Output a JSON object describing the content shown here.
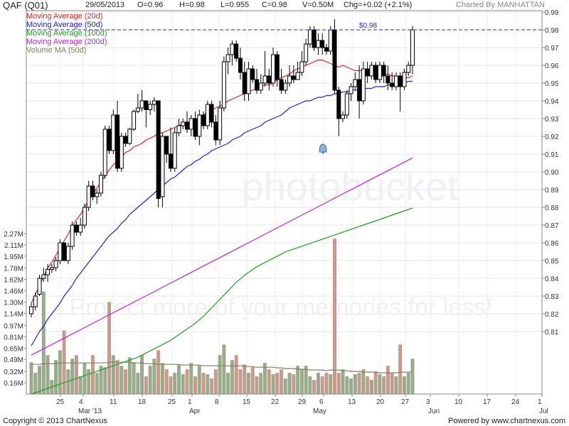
{
  "header": {
    "name": "QAF (Q01)",
    "date": "29/05/2013",
    "open": "O=0.96",
    "high": "H=0.98",
    "low": "L=0.955",
    "close": "C=0.98",
    "volume": "V=0.50M",
    "change": "Chg=+0.02 (+2.1%)",
    "charted_by": "Charted By MANHATTAN"
  },
  "legend": [
    {
      "label": "Moving Average (20d)",
      "color": "#e02020"
    },
    {
      "label": "Moving Average (50d)",
      "color": "#2020d0"
    },
    {
      "label": "Moving Average (100d)",
      "color": "#20a020"
    },
    {
      "label": "Moving Average (200d)",
      "color": "#c020e0"
    },
    {
      "label": "Volume MA (50d)",
      "color": "#808060"
    }
  ],
  "footer": {
    "copyright": "Copyright © 2013 ChartNexus",
    "powered": "Powered by www.chartnexus.com"
  },
  "watermark": {
    "brand": "photobucket",
    "slogan": "Protect more of your memories for less!"
  },
  "chart_data": {
    "type": "candlestick",
    "price_axis": {
      "ylim": [
        0.8,
        0.99
      ],
      "ticks": [
        "0.99",
        "0.98",
        "0.97",
        "0.96",
        "0.95",
        "0.94",
        "0.93",
        "0.92",
        "0.91",
        "0.90",
        "0.89",
        "0.88",
        "0.87",
        "0.86",
        "0.85",
        "0.84",
        "0.83",
        "0.82",
        "0.81"
      ]
    },
    "volume_axis": {
      "ylim": [
        0,
        2.5
      ],
      "ticks": [
        "2.27M",
        "2.11M",
        "1.95M",
        "1.78M",
        "1.62M",
        "1.46M",
        "1.30M",
        "1.14M",
        "0.97M",
        "0.81M",
        "0.65M",
        "0.49M",
        "0.32M",
        "0.16M"
      ]
    },
    "x_ticks": [
      "25",
      "4",
      "11",
      "18",
      "25",
      "1",
      "8",
      "15",
      "22",
      "29",
      "6",
      "13",
      "20",
      "27",
      "3",
      "10",
      "17",
      "24",
      "1"
    ],
    "month_labels": [
      "Mar '13",
      "Apr",
      "May",
      "Jun",
      "Jul"
    ],
    "price_marker": {
      "label": "$0.98",
      "value": 0.98
    },
    "candles": [
      [
        0.82,
        0.826,
        0.818,
        0.824
      ],
      [
        0.824,
        0.832,
        0.822,
        0.83
      ],
      [
        0.831,
        0.842,
        0.83,
        0.84
      ],
      [
        0.84,
        0.846,
        0.838,
        0.842
      ],
      [
        0.842,
        0.848,
        0.838,
        0.845
      ],
      [
        0.845,
        0.848,
        0.843,
        0.846
      ],
      [
        0.846,
        0.852,
        0.844,
        0.85
      ],
      [
        0.85,
        0.862,
        0.848,
        0.86
      ],
      [
        0.86,
        0.86,
        0.85,
        0.85
      ],
      [
        0.85,
        0.86,
        0.848,
        0.858
      ],
      [
        0.858,
        0.872,
        0.856,
        0.87
      ],
      [
        0.87,
        0.872,
        0.864,
        0.866
      ],
      [
        0.866,
        0.874,
        0.864,
        0.87
      ],
      [
        0.87,
        0.882,
        0.868,
        0.88
      ],
      [
        0.88,
        0.895,
        0.878,
        0.892
      ],
      [
        0.892,
        0.895,
        0.884,
        0.886
      ],
      [
        0.886,
        0.89,
        0.882,
        0.888
      ],
      [
        0.888,
        0.9,
        0.886,
        0.898
      ],
      [
        0.898,
        0.926,
        0.896,
        0.924
      ],
      [
        0.924,
        0.926,
        0.91,
        0.912
      ],
      [
        0.912,
        0.935,
        0.91,
        0.932
      ],
      [
        0.932,
        0.94,
        0.9,
        0.902
      ],
      [
        0.902,
        0.922,
        0.9,
        0.92
      ],
      [
        0.92,
        0.922,
        0.914,
        0.916
      ],
      [
        0.916,
        0.925,
        0.915,
        0.924
      ],
      [
        0.924,
        0.935,
        0.923,
        0.934
      ],
      [
        0.934,
        0.944,
        0.933,
        0.936
      ],
      [
        0.936,
        0.946,
        0.934,
        0.94
      ],
      [
        0.94,
        0.94,
        0.925,
        0.935
      ],
      [
        0.935,
        0.94,
        0.932,
        0.938
      ],
      [
        0.938,
        0.942,
        0.934,
        0.94
      ],
      [
        0.94,
        0.94,
        0.88,
        0.885
      ],
      [
        0.886,
        0.922,
        0.88,
        0.92
      ],
      [
        0.92,
        0.92,
        0.905,
        0.91
      ],
      [
        0.91,
        0.925,
        0.9,
        0.902
      ],
      [
        0.902,
        0.925,
        0.9,
        0.922
      ],
      [
        0.922,
        0.93,
        0.92,
        0.926
      ],
      [
        0.926,
        0.93,
        0.924,
        0.928
      ],
      [
        0.928,
        0.934,
        0.922,
        0.924
      ],
      [
        0.924,
        0.932,
        0.92,
        0.93
      ],
      [
        0.93,
        0.934,
        0.918,
        0.92
      ],
      [
        0.92,
        0.935,
        0.915,
        0.932
      ],
      [
        0.932,
        0.934,
        0.924,
        0.926
      ],
      [
        0.926,
        0.94,
        0.924,
        0.938
      ],
      [
        0.938,
        0.94,
        0.925,
        0.928
      ],
      [
        0.928,
        0.932,
        0.915,
        0.918
      ],
      [
        0.918,
        0.94,
        0.915,
        0.936
      ],
      [
        0.936,
        0.965,
        0.934,
        0.962
      ],
      [
        0.962,
        0.97,
        0.955,
        0.966
      ],
      [
        0.966,
        0.974,
        0.96,
        0.972
      ],
      [
        0.972,
        0.974,
        0.962,
        0.964
      ],
      [
        0.964,
        0.97,
        0.952,
        0.956
      ],
      [
        0.956,
        0.962,
        0.94,
        0.944
      ],
      [
        0.944,
        0.962,
        0.94,
        0.958
      ],
      [
        0.958,
        0.96,
        0.95,
        0.952
      ],
      [
        0.952,
        0.958,
        0.944,
        0.946
      ],
      [
        0.946,
        0.955,
        0.944,
        0.95
      ],
      [
        0.95,
        0.968,
        0.948,
        0.954
      ],
      [
        0.954,
        0.958,
        0.946,
        0.95
      ],
      [
        0.95,
        0.97,
        0.948,
        0.966
      ],
      [
        0.966,
        0.968,
        0.948,
        0.952
      ],
      [
        0.952,
        0.958,
        0.944,
        0.946
      ],
      [
        0.946,
        0.952,
        0.944,
        0.95
      ],
      [
        0.95,
        0.96,
        0.948,
        0.954
      ],
      [
        0.954,
        0.96,
        0.95,
        0.952
      ],
      [
        0.952,
        0.962,
        0.952,
        0.956
      ],
      [
        0.956,
        0.968,
        0.954,
        0.962
      ],
      [
        0.962,
        0.975,
        0.96,
        0.972
      ],
      [
        0.972,
        0.982,
        0.97,
        0.98
      ],
      [
        0.98,
        0.982,
        0.968,
        0.97
      ],
      [
        0.97,
        0.978,
        0.966,
        0.974
      ],
      [
        0.974,
        0.978,
        0.966,
        0.97
      ],
      [
        0.97,
        0.972,
        0.966,
        0.968
      ],
      [
        0.968,
        0.982,
        0.966,
        0.98
      ],
      [
        0.98,
        0.986,
        0.944,
        0.946
      ],
      [
        0.946,
        0.948,
        0.92,
        0.93
      ],
      [
        0.93,
        0.934,
        0.928,
        0.932
      ],
      [
        0.932,
        0.946,
        0.93,
        0.944
      ],
      [
        0.944,
        0.95,
        0.94,
        0.948
      ],
      [
        0.948,
        0.956,
        0.946,
        0.952
      ],
      [
        0.952,
        0.96,
        0.93,
        0.94
      ],
      [
        0.94,
        0.962,
        0.938,
        0.958
      ],
      [
        0.958,
        0.962,
        0.95,
        0.954
      ],
      [
        0.954,
        0.962,
        0.952,
        0.96
      ],
      [
        0.96,
        0.962,
        0.95,
        0.952
      ],
      [
        0.952,
        0.962,
        0.95,
        0.96
      ],
      [
        0.96,
        0.962,
        0.95,
        0.954
      ],
      [
        0.954,
        0.96,
        0.946,
        0.95
      ],
      [
        0.95,
        0.956,
        0.946,
        0.948
      ],
      [
        0.948,
        0.956,
        0.946,
        0.954
      ],
      [
        0.954,
        0.956,
        0.934,
        0.948
      ],
      [
        0.948,
        0.958,
        0.946,
        0.956
      ],
      [
        0.956,
        0.962,
        0.954,
        0.96
      ],
      [
        0.96,
        0.982,
        0.955,
        0.98
      ]
    ],
    "volume": [
      0.45,
      0.3,
      0.4,
      1.45,
      0.55,
      0.2,
      0.48,
      0.62,
      0.9,
      0.35,
      0.5,
      0.55,
      0.25,
      0.44,
      0.35,
      0.55,
      0.3,
      0.4,
      0.38,
      1.3,
      0.55,
      0.48,
      0.4,
      0.35,
      0.52,
      0.45,
      0.3,
      0.55,
      0.25,
      0.4,
      0.5,
      0.62,
      0.44,
      0.35,
      0.25,
      0.3,
      0.42,
      0.28,
      0.35,
      0.44,
      0.25,
      0.4,
      0.3,
      0.28,
      0.22,
      0.35,
      0.55,
      0.7,
      0.3,
      0.48,
      0.55,
      0.35,
      0.42,
      0.3,
      0.38,
      0.25,
      0.3,
      0.44,
      0.35,
      0.28,
      0.3,
      0.35,
      0.22,
      0.3,
      0.28,
      0.4,
      0.35,
      0.4,
      0.25,
      0.2,
      0.3,
      0.25,
      0.3,
      0.28,
      2.2,
      0.3,
      0.35,
      0.25,
      0.22,
      0.28,
      0.3,
      0.35,
      0.25,
      0.2,
      0.32,
      0.28,
      0.25,
      0.4,
      0.3,
      0.25,
      0.7,
      0.25,
      0.3,
      0.5
    ],
    "ma20": [
      0.826,
      0.831,
      0.836,
      0.841,
      0.846,
      0.849,
      0.853,
      0.857,
      0.861,
      0.865,
      0.869,
      0.873,
      0.876,
      0.88,
      0.884,
      0.887,
      0.891,
      0.894,
      0.898,
      0.901,
      0.904,
      0.906,
      0.908,
      0.911,
      0.912,
      0.914,
      0.915,
      0.916,
      0.918,
      0.919,
      0.92,
      0.922,
      0.922,
      0.923,
      0.924,
      0.925,
      0.926,
      0.927,
      0.928,
      0.928,
      0.929,
      0.93,
      0.932,
      0.934,
      0.935,
      0.936,
      0.937,
      0.938,
      0.94,
      0.941,
      0.942,
      0.943,
      0.944,
      0.945,
      0.946,
      0.947,
      0.948,
      0.949,
      0.949,
      0.95,
      0.952,
      0.953,
      0.954,
      0.955,
      0.957,
      0.958,
      0.959,
      0.96,
      0.961,
      0.962,
      0.963,
      0.963,
      0.962,
      0.961,
      0.96,
      0.959,
      0.96,
      0.959,
      0.958,
      0.957,
      0.957,
      0.957,
      0.957,
      0.956,
      0.956,
      0.956,
      0.955,
      0.955,
      0.954,
      0.954,
      0.953,
      0.953,
      0.953,
      0.954
    ],
    "ma50": [
      0.802,
      0.806,
      0.81,
      0.813,
      0.817,
      0.82,
      0.823,
      0.826,
      0.83,
      0.833,
      0.836,
      0.84,
      0.843,
      0.846,
      0.849,
      0.852,
      0.855,
      0.858,
      0.861,
      0.864,
      0.866,
      0.868,
      0.871,
      0.873,
      0.876,
      0.878,
      0.88,
      0.882,
      0.884,
      0.886,
      0.888,
      0.89,
      0.892,
      0.894,
      0.896,
      0.897,
      0.899,
      0.901,
      0.903,
      0.904,
      0.906,
      0.907,
      0.909,
      0.91,
      0.912,
      0.913,
      0.914,
      0.915,
      0.916,
      0.918,
      0.919,
      0.92,
      0.922,
      0.923,
      0.924,
      0.925,
      0.926,
      0.928,
      0.929,
      0.93,
      0.931,
      0.932,
      0.934,
      0.936,
      0.937,
      0.938,
      0.939,
      0.94,
      0.94,
      0.941,
      0.942,
      0.942,
      0.943,
      0.943,
      0.944,
      0.944,
      0.945,
      0.945,
      0.946,
      0.946,
      0.946,
      0.947,
      0.947,
      0.947,
      0.948,
      0.948,
      0.948,
      0.949,
      0.949,
      0.949,
      0.95,
      0.95,
      0.951,
      0.951
    ],
    "ma100_vol_units": [
      0.0,
      0.02,
      0.04,
      0.06,
      0.08,
      0.1,
      0.12,
      0.14,
      0.16,
      0.18,
      0.2,
      0.22,
      0.24,
      0.26,
      0.28,
      0.3,
      0.32,
      0.34,
      0.36,
      0.38,
      0.4,
      0.42,
      0.44,
      0.46,
      0.48,
      0.5,
      0.52,
      0.55,
      0.58,
      0.61,
      0.64,
      0.67,
      0.7,
      0.73,
      0.76,
      0.8,
      0.84,
      0.88,
      0.92,
      0.96,
      1.0,
      1.05,
      1.1,
      1.16,
      1.22,
      1.28,
      1.34,
      1.4,
      1.46,
      1.52,
      1.58,
      1.63,
      1.68,
      1.72,
      1.76,
      1.8,
      1.83,
      1.86,
      1.89,
      1.92,
      1.95,
      1.98,
      2.01,
      2.03,
      2.05,
      2.07,
      2.09,
      2.11,
      2.13,
      2.15,
      2.17,
      2.19,
      2.21,
      2.23,
      2.25,
      2.27,
      2.29,
      2.31,
      2.33,
      2.35,
      2.37,
      2.39,
      2.41,
      2.43,
      2.45,
      2.47,
      2.49,
      2.51,
      2.53,
      2.55,
      2.57,
      2.59,
      2.61,
      2.63
    ],
    "ma200_vol_units": [
      0.55,
      0.58,
      0.61,
      0.64,
      0.67,
      0.7,
      0.73,
      0.76,
      0.79,
      0.82,
      0.85,
      0.88,
      0.91,
      0.94,
      0.97,
      1.0,
      1.03,
      1.06,
      1.09,
      1.12,
      1.15,
      1.18,
      1.21,
      1.24,
      1.27,
      1.3,
      1.33,
      1.36,
      1.39,
      1.42,
      1.45,
      1.48,
      1.51,
      1.54,
      1.57,
      1.6,
      1.63,
      1.66,
      1.69,
      1.72,
      1.75,
      1.78,
      1.81,
      1.84,
      1.87,
      1.9,
      1.93,
      1.96,
      1.99,
      2.02,
      2.05,
      2.08,
      2.11,
      2.14,
      2.17,
      2.2,
      2.23,
      2.26,
      2.29,
      2.32,
      2.35,
      2.38,
      2.41,
      2.44,
      2.47,
      2.5,
      2.53,
      2.56,
      2.59,
      2.62,
      2.65,
      2.68,
      2.71,
      2.74,
      2.77,
      2.8,
      2.83,
      2.86,
      2.89,
      2.92,
      2.95,
      2.98,
      3.01,
      3.04,
      3.07,
      3.1,
      3.13,
      3.16,
      3.19,
      3.22,
      3.25,
      3.28,
      3.31,
      3.34
    ],
    "vol_ma": [
      0.42,
      0.42,
      0.42,
      0.43,
      0.43,
      0.43,
      0.43,
      0.44,
      0.44,
      0.44,
      0.44,
      0.44,
      0.44,
      0.44,
      0.44,
      0.44,
      0.44,
      0.44,
      0.44,
      0.45,
      0.45,
      0.45,
      0.45,
      0.45,
      0.45,
      0.44,
      0.44,
      0.44,
      0.43,
      0.43,
      0.43,
      0.42,
      0.42,
      0.42,
      0.42,
      0.42,
      0.42,
      0.41,
      0.41,
      0.41,
      0.41,
      0.41,
      0.4,
      0.4,
      0.4,
      0.4,
      0.4,
      0.4,
      0.4,
      0.4,
      0.4,
      0.4,
      0.39,
      0.39,
      0.39,
      0.38,
      0.38,
      0.38,
      0.38,
      0.38,
      0.37,
      0.37,
      0.36,
      0.36,
      0.36,
      0.35,
      0.35,
      0.35,
      0.34,
      0.34,
      0.34,
      0.34,
      0.33,
      0.34,
      0.34,
      0.34,
      0.33,
      0.33,
      0.32,
      0.32,
      0.32,
      0.31,
      0.31,
      0.31,
      0.31,
      0.3,
      0.3,
      0.3,
      0.3,
      0.3,
      0.31,
      0.31,
      0.31,
      0.31
    ]
  }
}
